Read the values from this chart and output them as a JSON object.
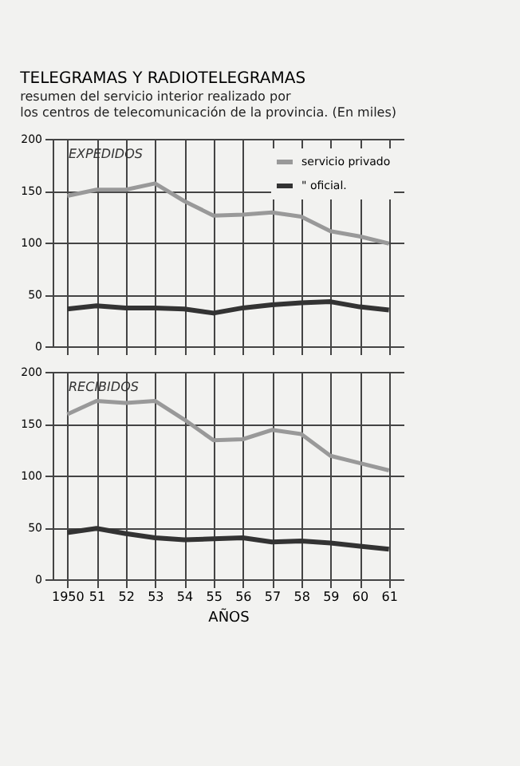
{
  "chart_data": [
    {
      "type": "line",
      "title": "TELEGRAMAS Y RADIOTELEGRAMAS",
      "subtitle": "resumen del servicio interior realizado por\nlos centros de telecomunicación de la provincia. (En miles)",
      "annotations": [
        "EXPEDIDOS"
      ],
      "categories": [
        "1950",
        "51",
        "52",
        "53",
        "54",
        "55",
        "56",
        "57",
        "58",
        "59",
        "60",
        "61"
      ],
      "series": [
        {
          "name": "servicio privado",
          "color": "#999999",
          "values": [
            145,
            151,
            151,
            157,
            140,
            126,
            127,
            129,
            125,
            111,
            106,
            99
          ]
        },
        {
          "name": "\" oficial.",
          "color": "#333333",
          "values": [
            36,
            39,
            37,
            37,
            36,
            32,
            37,
            40,
            42,
            43,
            38,
            35
          ]
        }
      ],
      "ylim": [
        0,
        200
      ],
      "yticks": [
        0,
        50,
        100,
        150,
        200
      ],
      "grid": true,
      "legend": "top right",
      "tick_labels": "y"
    },
    {
      "type": "line",
      "annotations": [
        "RECIBIDOS"
      ],
      "xlabel": "AÑOS",
      "categories": [
        "1950",
        "51",
        "52",
        "53",
        "54",
        "55",
        "56",
        "57",
        "58",
        "59",
        "60",
        "61"
      ],
      "series": [
        {
          "color": "#999999",
          "values": [
            159,
            172,
            170,
            172,
            154,
            134,
            135,
            144,
            140,
            119,
            112,
            105
          ]
        },
        {
          "color": "#333333",
          "values": [
            45,
            49,
            44,
            40,
            38,
            39,
            40,
            36,
            37,
            35,
            32,
            29
          ]
        }
      ],
      "ylim": [
        0,
        200
      ],
      "yticks": [
        0,
        50,
        100,
        150,
        200
      ],
      "grid": true
    }
  ]
}
